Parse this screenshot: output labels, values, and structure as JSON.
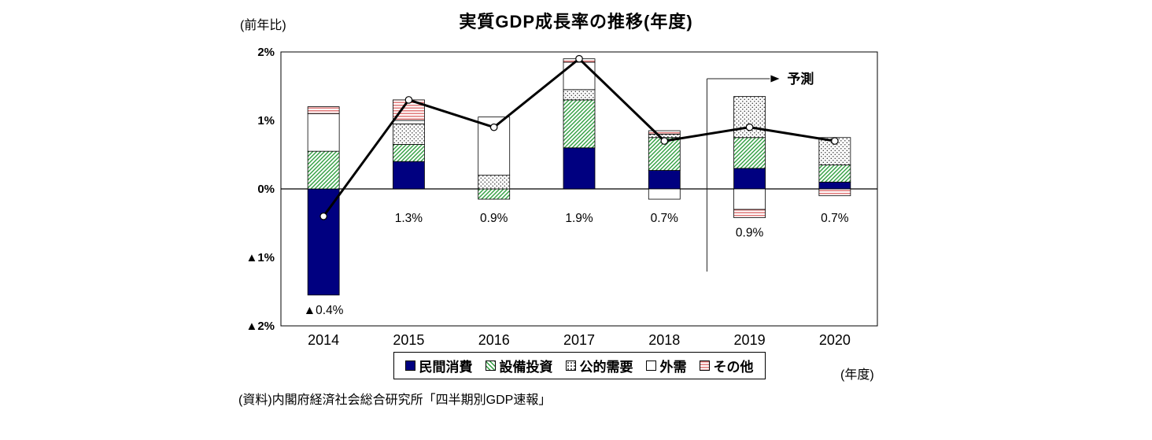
{
  "header": {
    "title": "実質GDP成長率の推移(年度)",
    "y_axis_unit": "(前年比)"
  },
  "chart_data": {
    "type": "bar",
    "stacked": true,
    "title": "実質GDP成長率の推移(年度)",
    "categories": [
      "2014",
      "2015",
      "2016",
      "2017",
      "2018",
      "2019",
      "2020"
    ],
    "series": [
      {
        "name": "民間消費",
        "pattern": "solid-navy",
        "values": [
          -1.55,
          0.4,
          0.0,
          0.6,
          0.27,
          0.3,
          0.1
        ]
      },
      {
        "name": "設備投資",
        "pattern": "green-hatch",
        "values": [
          0.55,
          0.25,
          -0.15,
          0.7,
          0.48,
          0.45,
          0.25
        ]
      },
      {
        "name": "公的需要",
        "pattern": "dots",
        "values": [
          0.0,
          0.3,
          0.2,
          0.15,
          0.05,
          0.6,
          0.4
        ]
      },
      {
        "name": "外需",
        "pattern": "white",
        "values": [
          0.55,
          0.05,
          0.85,
          0.4,
          -0.15,
          -0.3,
          0.0
        ]
      },
      {
        "name": "その他",
        "pattern": "pink-stripes",
        "values": [
          0.1,
          0.3,
          0.0,
          0.05,
          0.05,
          -0.12,
          -0.1
        ]
      }
    ],
    "line_values": [
      -0.4,
      1.3,
      0.9,
      1.9,
      0.7,
      0.9,
      0.7
    ],
    "data_labels": [
      "▲0.4%",
      "1.3%",
      "0.9%",
      "1.9%",
      "0.7%",
      "0.9%",
      "0.7%"
    ],
    "y_ticks": [
      "2%",
      "1%",
      "0%",
      "▲1%",
      "▲2%"
    ],
    "y_tick_values": [
      2,
      1,
      0,
      -1,
      -2
    ],
    "ylim": [
      -2,
      2
    ],
    "x_axis_label": "(年度)",
    "forecast_label": "予測",
    "forecast_start_index": 5,
    "legend_position": "bottom"
  },
  "colors": {
    "consumption_navy": "#000080",
    "capex_green": "#2f9e3f",
    "public_dot_gray": "#444444",
    "other_pink": "#e07878",
    "line_black": "#000000"
  },
  "footer": {
    "source": "(資料)内閣府経済社会総合研究所「四半期別GDP速報」"
  }
}
